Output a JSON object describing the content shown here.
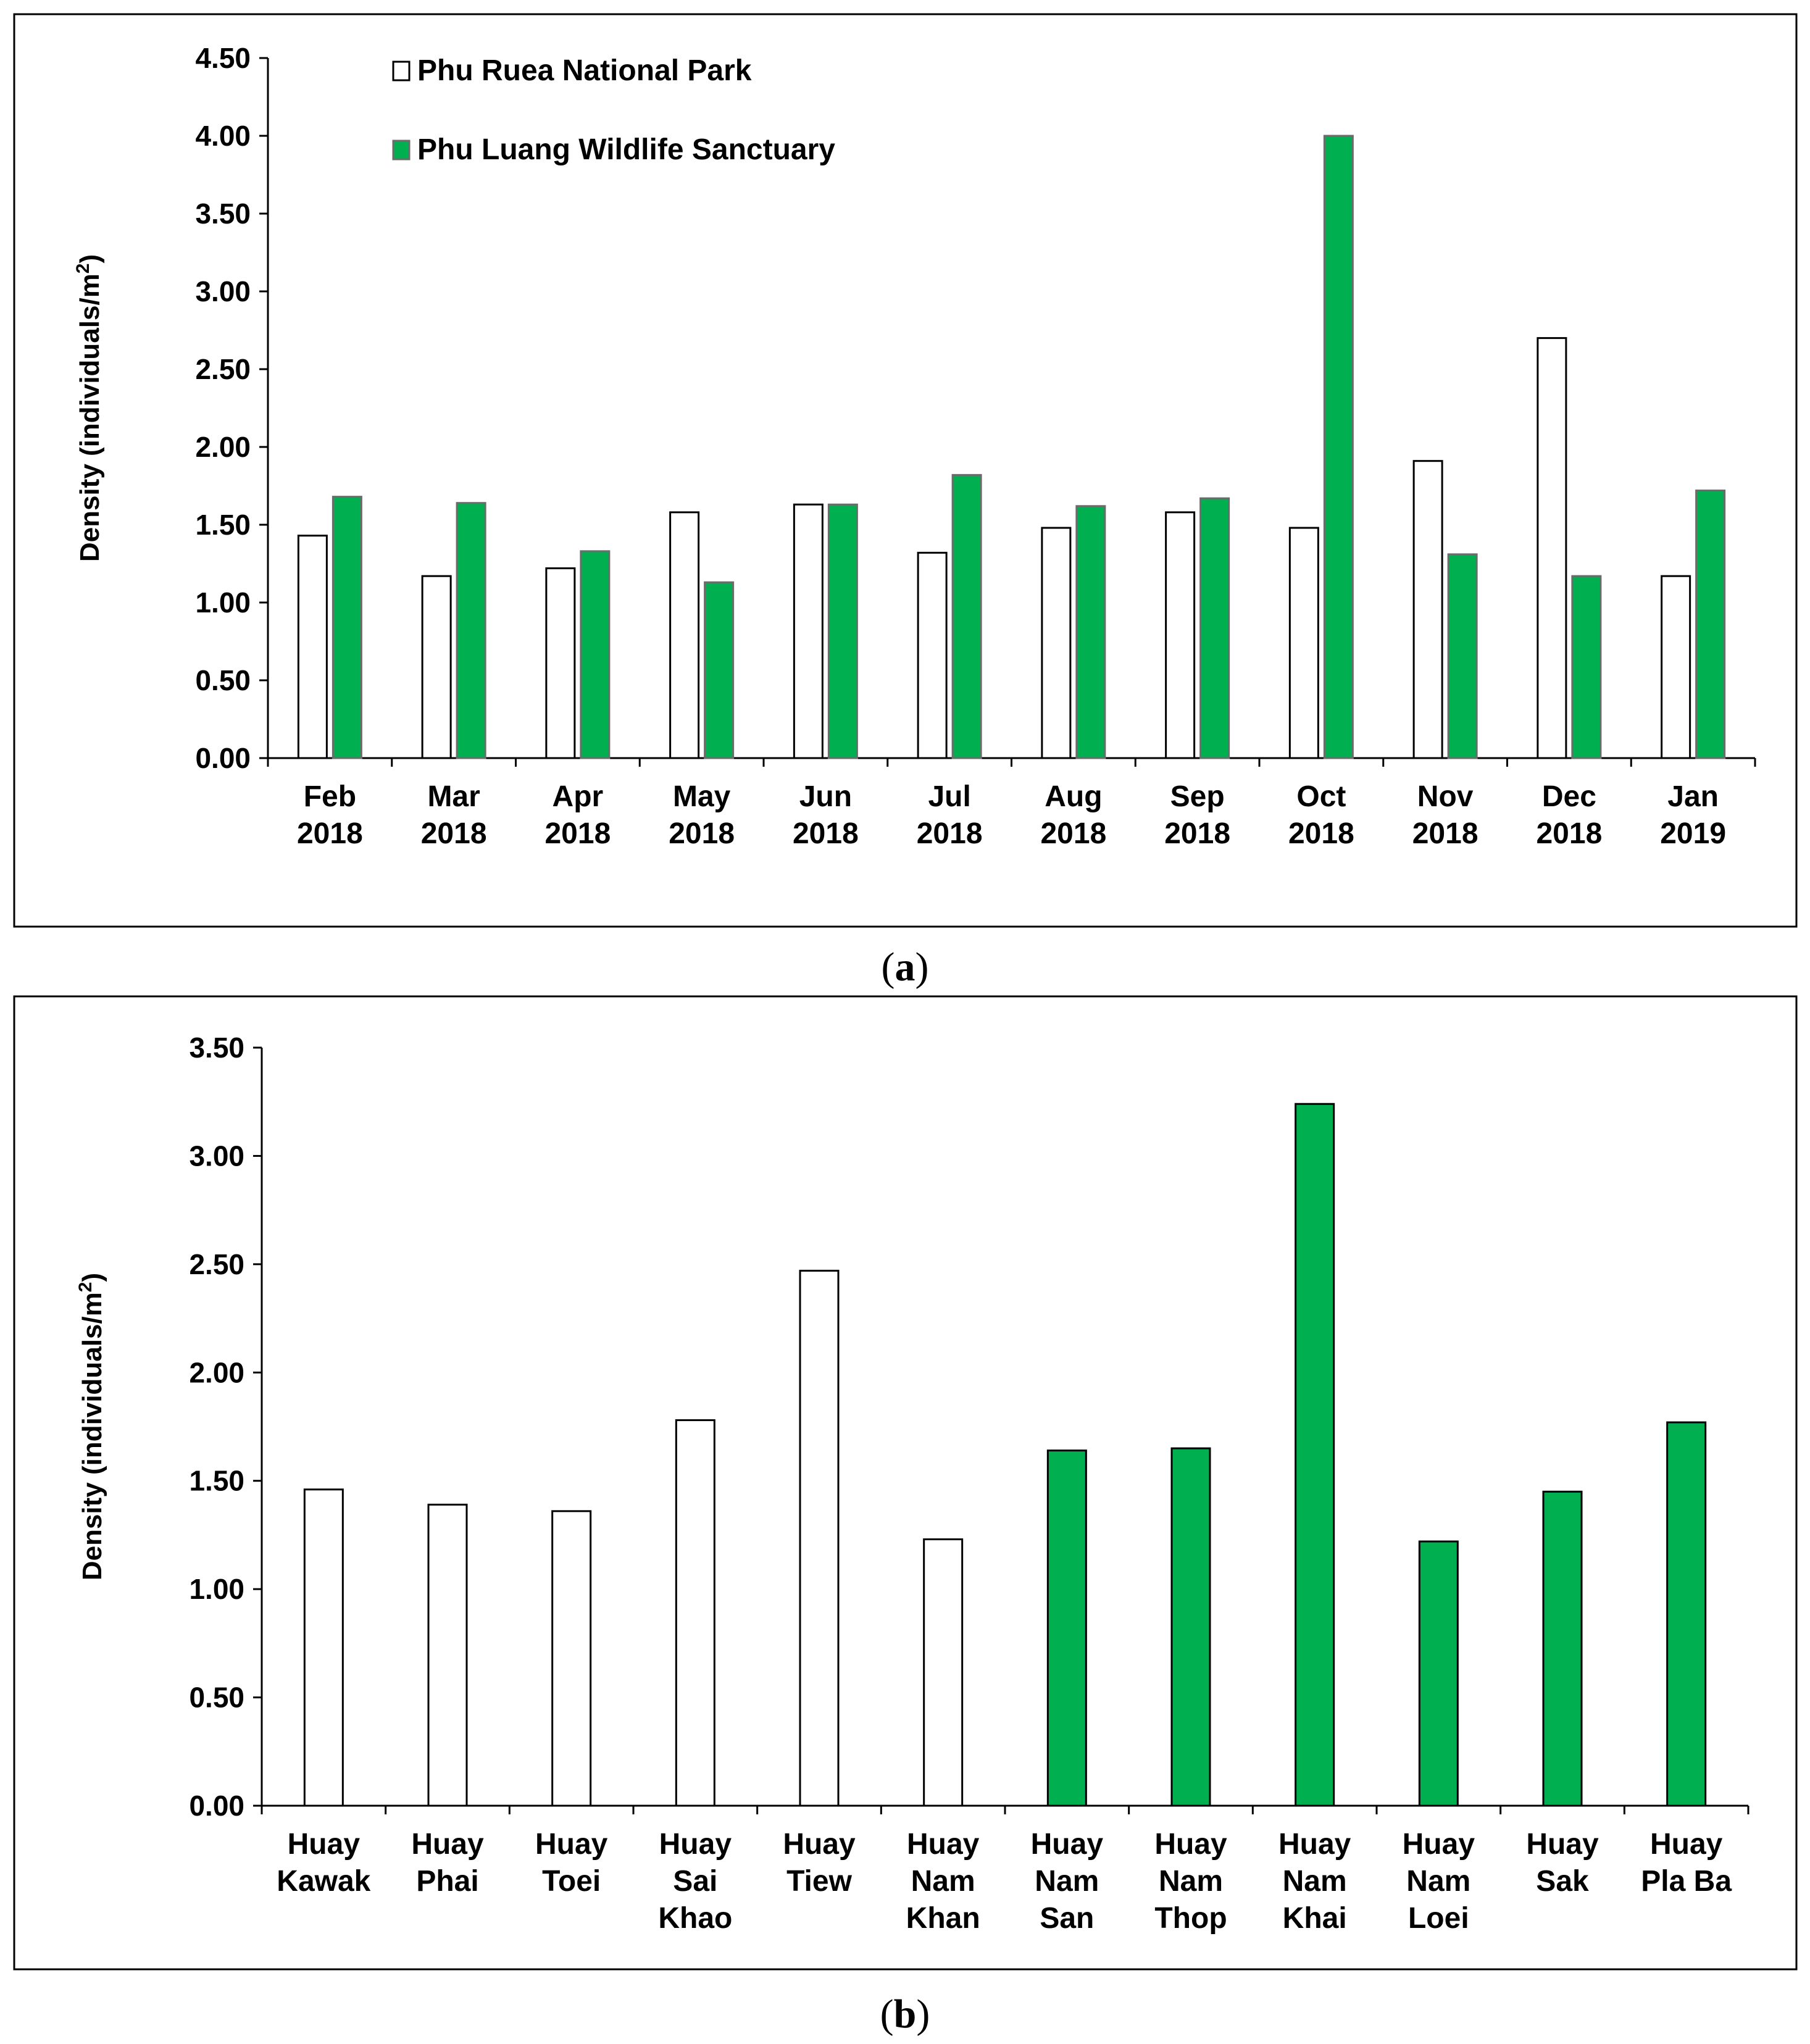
{
  "chart_data": [
    {
      "type": "bar",
      "panel_label": "a",
      "ylabel": "Density (individuals/m",
      "ylabel_sup": "2",
      "ylabel_close": ")",
      "ylim": [
        0,
        4.5
      ],
      "yticks": [
        "0.00",
        "0.50",
        "1.00",
        "1.50",
        "2.00",
        "2.50",
        "3.00",
        "3.50",
        "4.00",
        "4.50"
      ],
      "categories": [
        [
          "Feb",
          "2018"
        ],
        [
          "Mar",
          "2018"
        ],
        [
          "Apr",
          "2018"
        ],
        [
          "May",
          "2018"
        ],
        [
          "Jun",
          "2018"
        ],
        [
          "Jul",
          "2018"
        ],
        [
          "Aug",
          "2018"
        ],
        [
          "Sep",
          "2018"
        ],
        [
          "Oct",
          "2018"
        ],
        [
          "Nov",
          "2018"
        ],
        [
          "Dec",
          "2018"
        ],
        [
          "Jan",
          "2019"
        ]
      ],
      "legend_position": "top-left",
      "series": [
        {
          "name": "Phu Ruea National Park",
          "color": "#ffffff",
          "values": [
            1.43,
            1.17,
            1.22,
            1.58,
            1.63,
            1.32,
            1.48,
            1.58,
            1.48,
            1.91,
            2.7,
            1.17
          ]
        },
        {
          "name": "Phu Luang Wildlife Sanctuary",
          "color": "#00b050",
          "values": [
            1.68,
            1.64,
            1.33,
            1.13,
            1.63,
            1.82,
            1.62,
            1.67,
            4.0,
            1.31,
            1.17,
            1.72
          ]
        }
      ]
    },
    {
      "type": "bar",
      "panel_label": "b",
      "ylabel": "Density (individuals/m",
      "ylabel_sup": "2",
      "ylabel_close": ")",
      "ylim": [
        0,
        3.5
      ],
      "yticks": [
        "0.00",
        "0.50",
        "1.00",
        "1.50",
        "2.00",
        "2.50",
        "3.00",
        "3.50"
      ],
      "categories": [
        [
          "Huay",
          "Kawak"
        ],
        [
          "Huay",
          "Phai"
        ],
        [
          "Huay",
          "Toei"
        ],
        [
          "Huay",
          "Sai",
          "Khao"
        ],
        [
          "Huay",
          "Tiew"
        ],
        [
          "Huay",
          "Nam",
          "Khan"
        ],
        [
          "Huay",
          "Nam",
          "San"
        ],
        [
          "Huay",
          "Nam",
          "Thop"
        ],
        [
          "Huay",
          "Nam",
          "Khai"
        ],
        [
          "Huay",
          "Nam",
          "Loei"
        ],
        [
          "Huay",
          "Sak"
        ],
        [
          "Huay",
          "Pla Ba"
        ]
      ],
      "values": [
        1.46,
        1.39,
        1.36,
        1.78,
        2.47,
        1.23,
        1.64,
        1.65,
        3.24,
        1.22,
        1.45,
        1.77
      ],
      "colors": [
        "#ffffff",
        "#ffffff",
        "#ffffff",
        "#ffffff",
        "#ffffff",
        "#ffffff",
        "#00b050",
        "#00b050",
        "#00b050",
        "#00b050",
        "#00b050",
        "#00b050"
      ]
    }
  ]
}
